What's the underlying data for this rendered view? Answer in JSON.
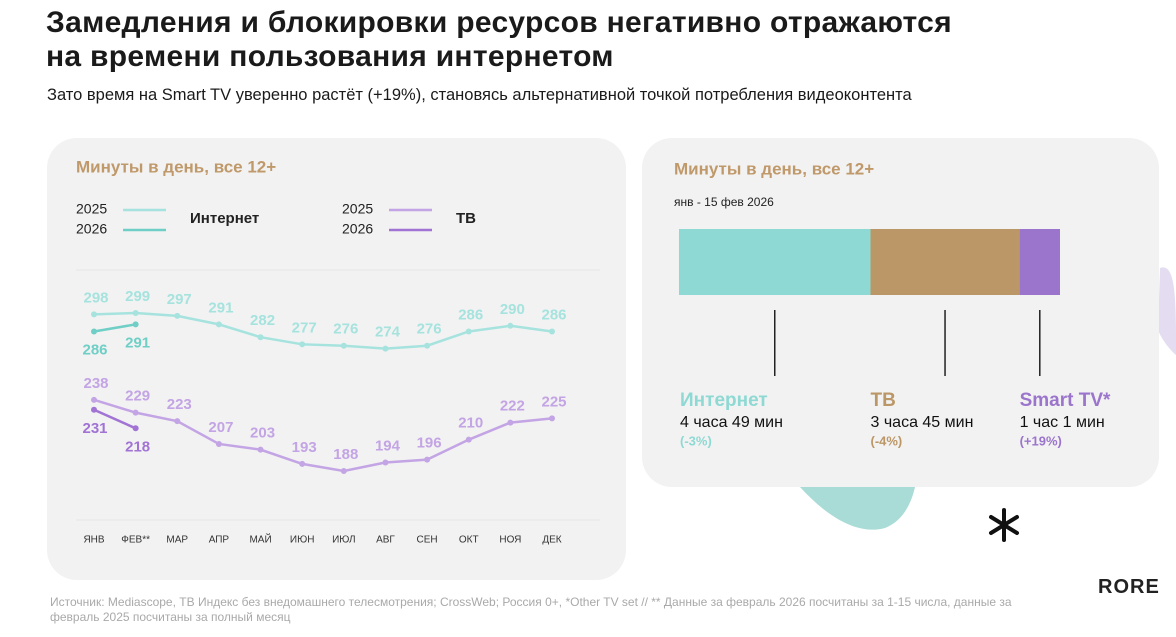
{
  "header": {
    "title": [
      "Замедления и блокировки ресурсов негативно отражаются",
      "на времени пользования интернетом"
    ],
    "subtitle": "Зато время на Smart TV уверенно растёт (+19%), становясь альтернативной точкой потребления видеоконтента"
  },
  "chart_data": [
    {
      "type": "line",
      "title": "Минуты в день, все 12+",
      "categories": [
        "ЯНВ",
        "ФЕВ**",
        "МАР",
        "АПР",
        "МАЙ",
        "ИЮН",
        "ИЮЛ",
        "АВГ",
        "СЕН",
        "ОКТ",
        "НОЯ",
        "ДЕК"
      ],
      "series": [
        {
          "name": "2025",
          "group": "Интернет",
          "color": "#a6e3de",
          "values": [
            298,
            299,
            297,
            291,
            282,
            277,
            276,
            274,
            276,
            286,
            290,
            286
          ]
        },
        {
          "name": "2026",
          "group": "Интернет",
          "color": "#6fcfc6",
          "values": [
            286,
            291,
            null,
            null,
            null,
            null,
            null,
            null,
            null,
            null,
            null,
            null
          ]
        },
        {
          "name": "2025",
          "group": "ТВ",
          "color": "#c3a4e4",
          "values": [
            238,
            229,
            223,
            207,
            203,
            193,
            188,
            194,
            196,
            210,
            222,
            225
          ]
        },
        {
          "name": "2026",
          "group": "ТВ",
          "color": "#a173d4",
          "values": [
            231,
            218,
            null,
            null,
            null,
            null,
            null,
            null,
            null,
            null,
            null,
            null
          ]
        }
      ]
    },
    {
      "type": "stacked_bar",
      "title": "Минуты в день, все 12+",
      "subtitle": "янв - 15 фев 2026",
      "series": [
        {
          "name": "Интернет",
          "color": "#8ed9d3",
          "values": [
            289
          ],
          "value_labels": [
            "4 часа 49 мин"
          ],
          "change_label": "(-3%)"
        },
        {
          "name": "ТВ",
          "color": "#bb9767",
          "values": [
            225
          ],
          "value_labels": [
            "3 часа 45 мин"
          ],
          "change_label": "(-4%)"
        },
        {
          "name": "Smart TV*",
          "color": "#9b74cc",
          "values": [
            61
          ],
          "value_labels": [
            "1 час 1 мин"
          ],
          "change_label": "(+19%)"
        }
      ]
    }
  ],
  "footer": {
    "source": "Источник: Mediascope, ТВ Индекс без внедомашнего телесмотрения; CrossWeb; Россия 0+, *Other TV set // ** Данные за февраль 2026 посчитаны за 1-15 числа, данные за февраль 2025 посчитаны за полный месяц",
    "logo": "RORE"
  }
}
